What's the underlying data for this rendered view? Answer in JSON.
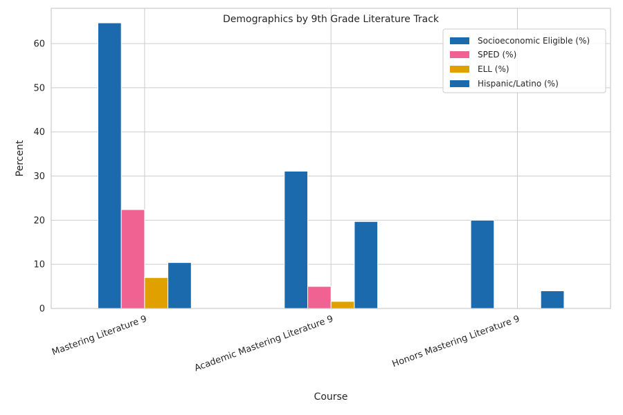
{
  "chart_data": {
    "type": "bar",
    "title": "Demographics by 9th Grade Literature Track",
    "xlabel": "Course",
    "ylabel": "Percent",
    "categories": [
      "Mastering Literature 9",
      "Academic Mastering Literature 9",
      "Honors Mastering Literature 9"
    ],
    "series": [
      {
        "name": "Socioeconomic Eligible (%)",
        "color": "#1a6aad",
        "values": [
          64.7,
          31.1,
          20.0
        ]
      },
      {
        "name": "SPED (%)",
        "color": "#f06292",
        "values": [
          22.4,
          5.0,
          0
        ]
      },
      {
        "name": "ELL (%)",
        "color": "#e0a000",
        "values": [
          7.0,
          1.6,
          0
        ]
      },
      {
        "name": "Hispanic/Latino (%)",
        "color": "#1a6aad",
        "values": [
          10.4,
          19.7,
          4.0
        ]
      }
    ],
    "ylim": [
      0,
      68
    ],
    "yticks": [
      0,
      10,
      20,
      30,
      40,
      50,
      60
    ],
    "grid": true,
    "legend_position": "top-right"
  }
}
